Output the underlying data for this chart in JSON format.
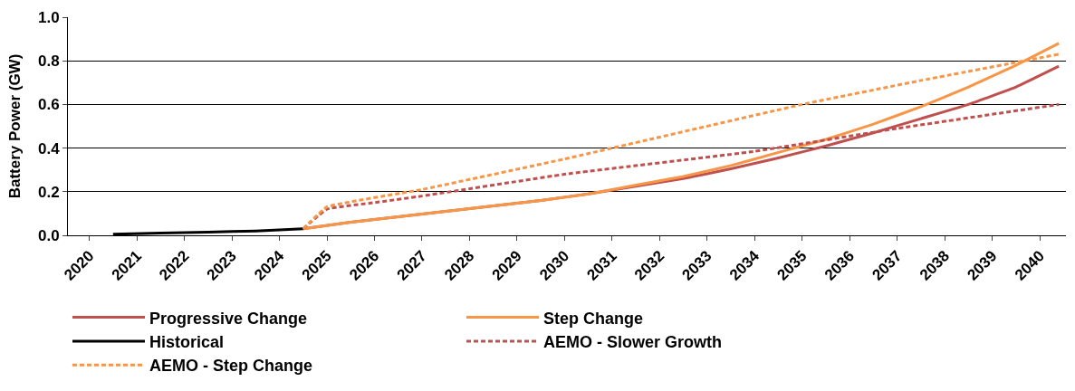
{
  "chart_data": {
    "type": "line",
    "ylabel": "Battery Power (GW)",
    "xlim": [
      2019.55,
      2040.55
    ],
    "xticks": [
      2020,
      2021,
      2022,
      2023,
      2024,
      2025,
      2026,
      2027,
      2028,
      2029,
      2030,
      2031,
      2032,
      2033,
      2034,
      2035,
      2036,
      2037,
      2038,
      2039,
      2040
    ],
    "ylim": [
      0,
      1.0
    ],
    "yticks": [
      {
        "value": 0,
        "label": "0.0"
      },
      {
        "value": 0.2,
        "label": "0.2"
      },
      {
        "value": 0.4,
        "label": "0.4"
      },
      {
        "value": 0.6,
        "label": "0.6"
      },
      {
        "value": 0.8,
        "label": "0.8"
      },
      {
        "value": 1.0,
        "label": "1.0"
      }
    ],
    "grid": "y",
    "legend": "bottom",
    "marker": "none",
    "series": [
      {
        "name": "Progressive Change",
        "color": "#c0504d",
        "line_style": "solid",
        "x": [
          2024.5,
          2025.5,
          2026.5,
          2027.5,
          2028.5,
          2029.5,
          2030.5,
          2031.5,
          2032.5,
          2033.5,
          2034.5,
          2035.5,
          2036.5,
          2037.5,
          2038.5,
          2039.5,
          2040.4
        ],
        "values": [
          0.03,
          0.06,
          0.085,
          0.11,
          0.135,
          0.16,
          0.19,
          0.225,
          0.26,
          0.305,
          0.355,
          0.41,
          0.47,
          0.535,
          0.6,
          0.68,
          0.775
        ]
      },
      {
        "name": "Step Change",
        "color": "#f79646",
        "line_style": "solid",
        "x": [
          2024.5,
          2025.5,
          2026.5,
          2027.5,
          2028.5,
          2029.5,
          2030.5,
          2031.5,
          2032.5,
          2033.5,
          2034.5,
          2035.5,
          2036.5,
          2037.5,
          2038.5,
          2039.5,
          2040.4
        ],
        "values": [
          0.03,
          0.06,
          0.085,
          0.11,
          0.135,
          0.16,
          0.19,
          0.23,
          0.27,
          0.32,
          0.38,
          0.44,
          0.51,
          0.59,
          0.68,
          0.78,
          0.88
        ]
      },
      {
        "name": "Historical",
        "color": "#000000",
        "line_style": "solid",
        "x": [
          2020.5,
          2021.5,
          2022.5,
          2023.5,
          2024.5
        ],
        "values": [
          0.005,
          0.01,
          0.015,
          0.02,
          0.03
        ]
      },
      {
        "name": "AEMO - Slower Growth",
        "color": "#c0504d",
        "line_style": "dashed",
        "x": [
          2024.5,
          2025,
          2026,
          2027,
          2030,
          2034,
          2037,
          2040.4
        ],
        "values": [
          0.03,
          0.12,
          0.15,
          0.18,
          0.28,
          0.385,
          0.49,
          0.6
        ]
      },
      {
        "name": "AEMO - Step Change",
        "color": "#f79646",
        "line_style": "dashed",
        "x": [
          2024.5,
          2025,
          2027,
          2030,
          2035,
          2037.5,
          2040.4
        ],
        "values": [
          0.03,
          0.13,
          0.21,
          0.35,
          0.6,
          0.71,
          0.83
        ]
      }
    ]
  }
}
